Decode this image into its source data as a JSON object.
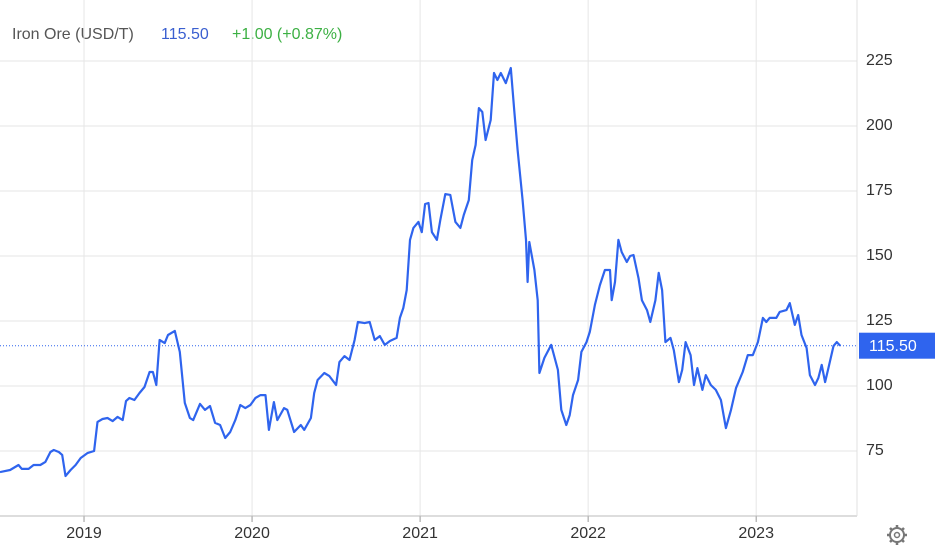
{
  "chart_data": {
    "type": "line",
    "title": "Iron Ore (USD/T)",
    "price": 115.5,
    "price_label": "115.50",
    "change": "+1.00 (+0.87%)",
    "color": "#2f64ee",
    "x": [
      2018.5,
      2018.56,
      2018.61,
      2018.63,
      2018.67,
      2018.7,
      2018.74,
      2018.77,
      2018.8,
      2018.82,
      2018.85,
      2018.87,
      2018.89,
      2018.92,
      2018.95,
      2018.98,
      2019.02,
      2019.06,
      2019.08,
      2019.11,
      2019.14,
      2019.17,
      2019.2,
      2019.23,
      2019.25,
      2019.27,
      2019.3,
      2019.33,
      2019.36,
      2019.39,
      2019.41,
      2019.43,
      2019.45,
      2019.48,
      2019.5,
      2019.54,
      2019.57,
      2019.6,
      2019.63,
      2019.65,
      2019.69,
      2019.72,
      2019.75,
      2019.78,
      2019.81,
      2019.84,
      2019.87,
      2019.9,
      2019.93,
      2019.96,
      2019.99,
      2020.02,
      2020.05,
      2020.08,
      2020.1,
      2020.13,
      2020.15,
      2020.19,
      2020.21,
      2020.25,
      2020.29,
      2020.31,
      2020.35,
      2020.37,
      2020.39,
      2020.43,
      2020.46,
      2020.5,
      2020.52,
      2020.55,
      2020.58,
      2020.61,
      2020.63,
      2020.67,
      2020.7,
      2020.73,
      2020.76,
      2020.79,
      2020.82,
      2020.86,
      2020.88,
      2020.9,
      2020.92,
      2020.94,
      2020.96,
      2020.99,
      2021.01,
      2021.03,
      2021.05,
      2021.07,
      2021.1,
      2021.12,
      2021.15,
      2021.18,
      2021.21,
      2021.24,
      2021.26,
      2021.29,
      2021.31,
      2021.33,
      2021.35,
      2021.37,
      2021.39,
      2021.42,
      2021.44,
      2021.46,
      2021.48,
      2021.51,
      2021.54,
      2021.56,
      2021.58,
      2021.61,
      2021.63,
      2021.64,
      2021.65,
      2021.68,
      2021.7,
      2021.71,
      2021.74,
      2021.78,
      2021.82,
      2021.84,
      2021.87,
      2021.89,
      2021.91,
      2021.94,
      2021.96,
      2021.99,
      2022.01,
      2022.04,
      2022.07,
      2022.1,
      2022.13,
      2022.14,
      2022.16,
      2022.18,
      2022.2,
      2022.23,
      2022.25,
      2022.27,
      2022.3,
      2022.32,
      2022.35,
      2022.37,
      2022.4,
      2022.42,
      2022.44,
      2022.46,
      2022.49,
      2022.51,
      2022.54,
      2022.56,
      2022.58,
      2022.61,
      2022.63,
      2022.65,
      2022.68,
      2022.7,
      2022.73,
      2022.76,
      2022.79,
      2022.82,
      2022.85,
      2022.88,
      2022.92,
      2022.95,
      2022.98,
      2023.01,
      2023.04,
      2023.06,
      2023.08,
      2023.12,
      2023.14,
      2023.18,
      2023.2,
      2023.23,
      2023.25,
      2023.27,
      2023.3,
      2023.32,
      2023.35,
      2023.37,
      2023.39,
      2023.41,
      2023.43,
      2023.46,
      2023.48,
      2023.5
    ],
    "values": [
      66.9,
      67.7,
      69.6,
      68.1,
      68.1,
      69.6,
      69.6,
      70.8,
      74.6,
      75.4,
      74.6,
      73.5,
      65.4,
      67.7,
      69.6,
      72.3,
      74.2,
      75.0,
      86.2,
      87.3,
      87.7,
      86.5,
      88.1,
      86.9,
      94.2,
      95.4,
      94.6,
      97.3,
      99.6,
      105.4,
      105.4,
      100.4,
      117.7,
      116.5,
      119.6,
      121.2,
      113.1,
      93.5,
      87.7,
      86.9,
      93.1,
      90.8,
      92.3,
      85.8,
      85.0,
      80.0,
      82.3,
      86.9,
      92.7,
      91.5,
      92.7,
      95.4,
      96.5,
      96.5,
      83.1,
      93.8,
      86.9,
      91.5,
      90.8,
      82.3,
      85.0,
      83.1,
      87.7,
      97.3,
      102.3,
      105.0,
      103.8,
      100.4,
      109.2,
      111.5,
      110.0,
      117.7,
      124.6,
      124.2,
      124.6,
      117.7,
      119.2,
      115.8,
      117.3,
      118.5,
      126.2,
      130.0,
      136.9,
      156.2,
      160.8,
      163.1,
      159.2,
      170.0,
      170.4,
      159.2,
      156.2,
      163.8,
      173.8,
      173.5,
      163.1,
      160.8,
      165.8,
      171.5,
      186.9,
      192.7,
      206.9,
      205.4,
      194.6,
      202.3,
      220.4,
      217.7,
      220.4,
      216.5,
      222.3,
      206.2,
      190.8,
      171.5,
      156.2,
      140.0,
      155.4,
      144.6,
      133.0,
      105.0,
      110.8,
      115.8,
      106.2,
      90.8,
      85.0,
      88.8,
      96.5,
      102.3,
      113.1,
      116.9,
      120.8,
      131.2,
      138.8,
      144.6,
      144.6,
      133.0,
      140.0,
      156.2,
      151.5,
      147.7,
      150.0,
      150.4,
      141.5,
      133.0,
      129.2,
      124.6,
      133.0,
      143.5,
      136.9,
      116.9,
      118.5,
      113.8,
      101.5,
      106.2,
      116.9,
      111.9,
      100.4,
      106.9,
      98.5,
      104.2,
      100.4,
      98.5,
      94.6,
      83.8,
      90.8,
      99.2,
      105.4,
      111.9,
      111.9,
      116.9,
      126.2,
      124.6,
      126.2,
      126.2,
      128.5,
      129.2,
      131.9,
      123.5,
      127.3,
      119.6,
      114.6,
      104.2,
      100.4,
      103.1,
      108.1,
      101.5,
      106.9,
      115.4,
      116.9,
      115.5
    ],
    "xlim": [
      2018.5,
      2023.6
    ],
    "xticks": [
      2019,
      2020,
      2021,
      2022,
      2023
    ],
    "ylim": [
      50,
      250
    ],
    "yticks": [
      75,
      100,
      125,
      150,
      175,
      200,
      225
    ],
    "grid": true
  }
}
